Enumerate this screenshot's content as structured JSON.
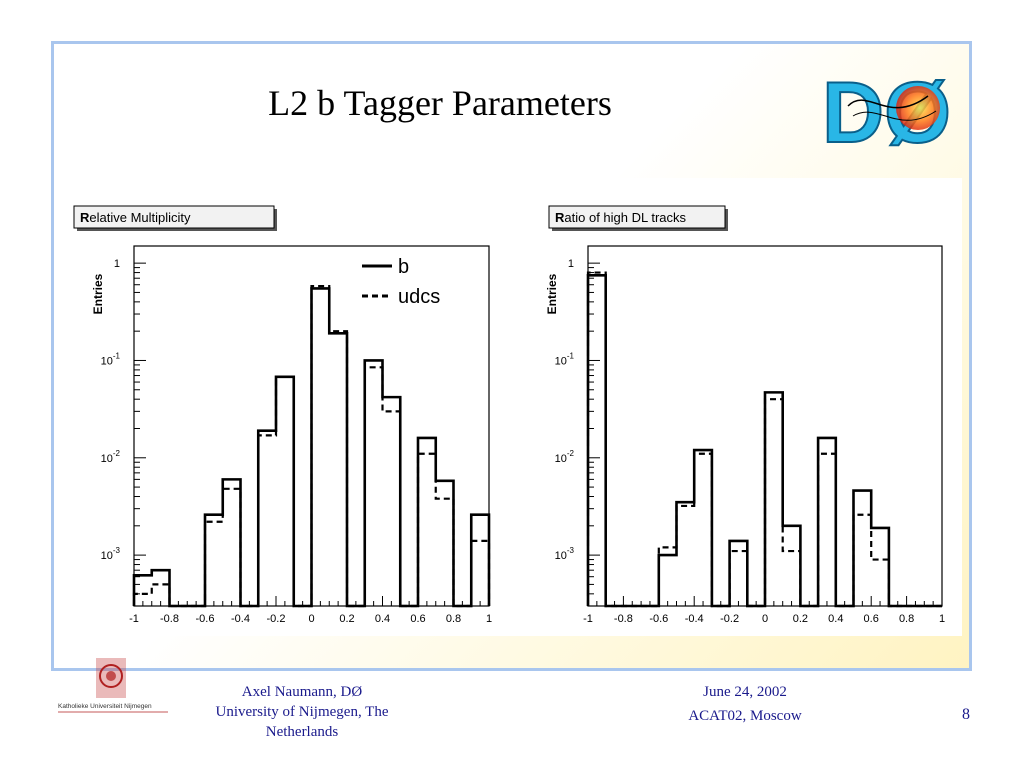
{
  "slide": {
    "title": "L2 b Tagger Parameters",
    "logo_text": "DØ",
    "footer": {
      "institution_logo_text": "Katholieke Universiteit Nijmegen",
      "author_lines": [
        "Axel Naumann, DØ",
        "University of Nijmegen, The",
        "Netherlands"
      ],
      "date": "June 24, 2002",
      "conference": "ACAT02, Moscow",
      "page_number": "8"
    },
    "colors": {
      "frame_border": "#a9c6ee",
      "footer_text": "#1a1a8c",
      "background_accent": "#fff3c2"
    }
  },
  "chart_data": [
    {
      "type": "histogram",
      "title_prefix_bold": "R",
      "title": "elative Multiplicity",
      "title_full": "Relative Multiplicity",
      "ylabel": "Entries",
      "xlabel": "",
      "xlim": [
        -1,
        1
      ],
      "ylim": [
        0.0003,
        1.5
      ],
      "yscale": "log",
      "xticks": [
        "-1",
        "-0.8",
        "-0.6",
        "-0.4",
        "-0.2",
        "0",
        "0.2",
        "0.4",
        "0.6",
        "0.8",
        "1"
      ],
      "yticks": [
        {
          "value": 1,
          "base": "1",
          "exp": ""
        },
        {
          "value": 0.1,
          "base": "10",
          "exp": "-1"
        },
        {
          "value": 0.01,
          "base": "10",
          "exp": "-2"
        },
        {
          "value": 0.001,
          "base": "10",
          "exp": "-3"
        }
      ],
      "legend": {
        "position": "top-right",
        "entries": [
          {
            "label": "b",
            "style": "solid"
          },
          {
            "label": "udcs",
            "style": "dashed"
          }
        ]
      },
      "bin_edges": [
        -1,
        -0.9,
        -0.8,
        -0.7,
        -0.6,
        -0.5,
        -0.4,
        -0.3,
        -0.2,
        -0.1,
        0,
        0.1,
        0.2,
        0.3,
        0.4,
        0.5,
        0.6,
        0.7,
        0.8,
        0.9,
        1
      ],
      "series": [
        {
          "name": "b",
          "style": "solid",
          "values": [
            0.00062,
            0.0007,
            0,
            0,
            0.0026,
            0.006,
            0,
            0.019,
            0.068,
            0,
            0.55,
            0.19,
            0,
            0.1,
            0.042,
            0,
            0.016,
            0.0058,
            0,
            0.0026
          ]
        },
        {
          "name": "udcs",
          "style": "dashed",
          "values": [
            0.0004,
            0.0005,
            0,
            0,
            0.0022,
            0.0048,
            0,
            0.017,
            0.068,
            0,
            0.58,
            0.2,
            0,
            0.085,
            0.03,
            0,
            0.011,
            0.0038,
            0,
            0.0014
          ]
        }
      ]
    },
    {
      "type": "histogram",
      "title_prefix_bold": "R",
      "title": "atio of high DL tracks",
      "title_full": "Ratio of high DL tracks",
      "ylabel": "Entries",
      "xlabel": "",
      "xlim": [
        -1,
        1
      ],
      "ylim": [
        0.0003,
        1.5
      ],
      "yscale": "log",
      "xticks": [
        "-1",
        "-0.8",
        "-0.6",
        "-0.4",
        "-0.2",
        "0",
        "0.2",
        "0.4",
        "0.6",
        "0.8",
        "1"
      ],
      "yticks": [
        {
          "value": 1,
          "base": "1",
          "exp": ""
        },
        {
          "value": 0.1,
          "base": "10",
          "exp": "-1"
        },
        {
          "value": 0.01,
          "base": "10",
          "exp": "-2"
        },
        {
          "value": 0.001,
          "base": "10",
          "exp": "-3"
        }
      ],
      "legend": null,
      "bin_edges": [
        -1,
        -0.9,
        -0.8,
        -0.7,
        -0.6,
        -0.5,
        -0.4,
        -0.3,
        -0.2,
        -0.1,
        0,
        0.1,
        0.2,
        0.3,
        0.4,
        0.5,
        0.6,
        0.7,
        0.8,
        0.9,
        1
      ],
      "series": [
        {
          "name": "b",
          "style": "solid",
          "values": [
            0.75,
            0,
            0,
            0,
            0.001,
            0.0035,
            0.012,
            0,
            0.0014,
            0,
            0.047,
            0.002,
            0,
            0.016,
            0,
            0.0046,
            0.0019,
            0,
            0,
            0
          ]
        },
        {
          "name": "udcs",
          "style": "dashed",
          "values": [
            0.8,
            0,
            0,
            0,
            0.0012,
            0.0032,
            0.011,
            0,
            0.0011,
            0,
            0.04,
            0.0011,
            0,
            0.011,
            0,
            0.0026,
            0.0009,
            0,
            0,
            0
          ]
        }
      ]
    }
  ]
}
